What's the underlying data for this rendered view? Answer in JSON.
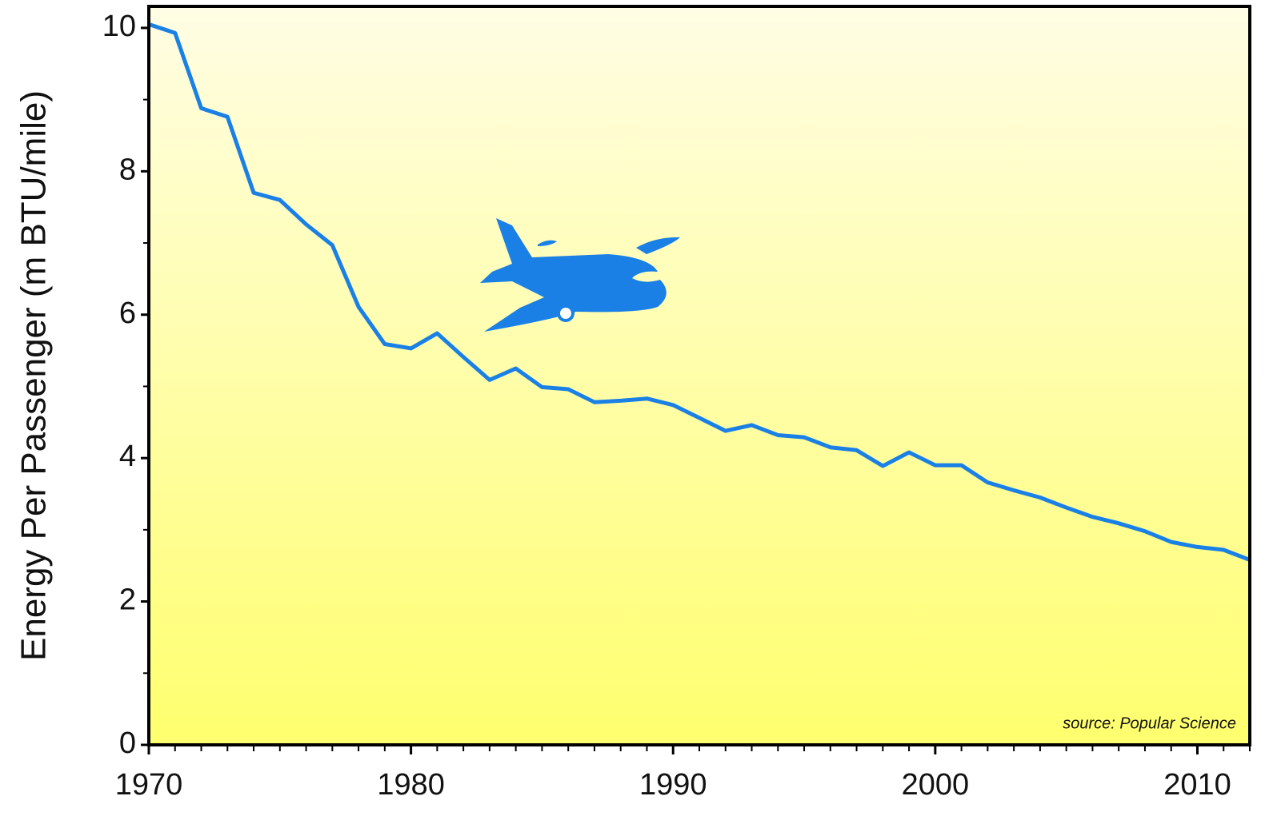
{
  "chart_data": {
    "type": "line",
    "y_label": "Energy Per Passenger (m BTU/mile)",
    "annotation": "source:  Popular Science",
    "x": [
      1970,
      1971,
      1972,
      1973,
      1974,
      1975,
      1976,
      1977,
      1978,
      1979,
      1980,
      1981,
      1982,
      1983,
      1984,
      1985,
      1986,
      1987,
      1988,
      1989,
      1990,
      1991,
      1992,
      1993,
      1994,
      1995,
      1996,
      1997,
      1998,
      1999,
      2000,
      2001,
      2002,
      2003,
      2004,
      2005,
      2006,
      2007,
      2008,
      2009,
      2010,
      2011,
      2012
    ],
    "series": [
      {
        "color": "#1a80e6",
        "values": [
          10.05,
          9.93,
          8.88,
          8.76,
          7.7,
          7.6,
          7.26,
          6.97,
          6.11,
          5.59,
          5.53,
          5.74,
          5.41,
          5.09,
          5.25,
          4.99,
          4.96,
          4.78,
          4.8,
          4.83,
          4.74,
          4.56,
          4.38,
          4.46,
          4.32,
          4.29,
          4.15,
          4.11,
          3.89,
          4.08,
          3.9,
          3.9,
          3.66,
          3.55,
          3.45,
          3.31,
          3.18,
          3.09,
          2.98,
          2.83,
          2.76,
          2.72,
          2.58
        ]
      }
    ],
    "xlim": [
      1970,
      2012
    ],
    "xticks": [
      1970,
      1980,
      1990,
      2000,
      2010
    ],
    "ylim": [
      0,
      10.3
    ],
    "yticks": [
      0,
      2,
      4,
      6,
      8,
      10
    ]
  }
}
